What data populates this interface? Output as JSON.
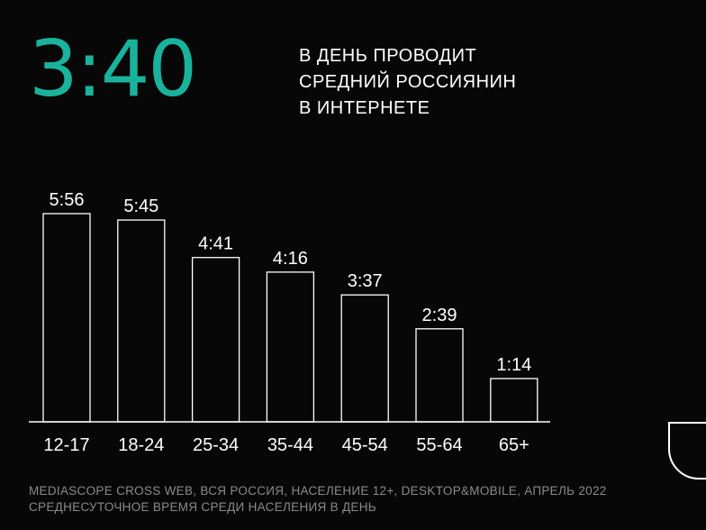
{
  "header": {
    "big_number": "3:40",
    "headline_lines": [
      "В ДЕНЬ ПРОВОДИТ",
      "СРЕДНИЙ РОССИЯНИН",
      "В ИНТЕРНЕТЕ"
    ]
  },
  "chart_data": {
    "type": "bar",
    "title": "",
    "xlabel": "",
    "ylabel": "",
    "categories": [
      "12-17",
      "18-24",
      "25-34",
      "35-44",
      "45-54",
      "55-64",
      "65+"
    ],
    "labels": [
      "5:56",
      "5:45",
      "4:41",
      "4:16",
      "3:37",
      "2:39",
      "1:14"
    ],
    "values": [
      356,
      345,
      281,
      256,
      217,
      159,
      74
    ],
    "units": "minutes per day",
    "ylim": [
      0,
      356
    ],
    "grid": false,
    "bar_fill": "none",
    "bar_stroke": "#ffffff"
  },
  "footer": {
    "source_lines": [
      "MEDIASCOPE CROSS WEB, ВСЯ РОССИЯ, НАСЕЛЕНИЕ 12+, DESKTOP&MOBILE, АПРЕЛЬ 2022",
      "СРЕДНЕСУТОЧНОЕ ВРЕМЯ СРЕДИ НАСЕЛЕНИЯ В ДЕНЬ"
    ]
  },
  "colors": {
    "background": "#070707",
    "accent": "#19b39b",
    "text": "#ffffff",
    "muted": "#8a8a8a"
  }
}
